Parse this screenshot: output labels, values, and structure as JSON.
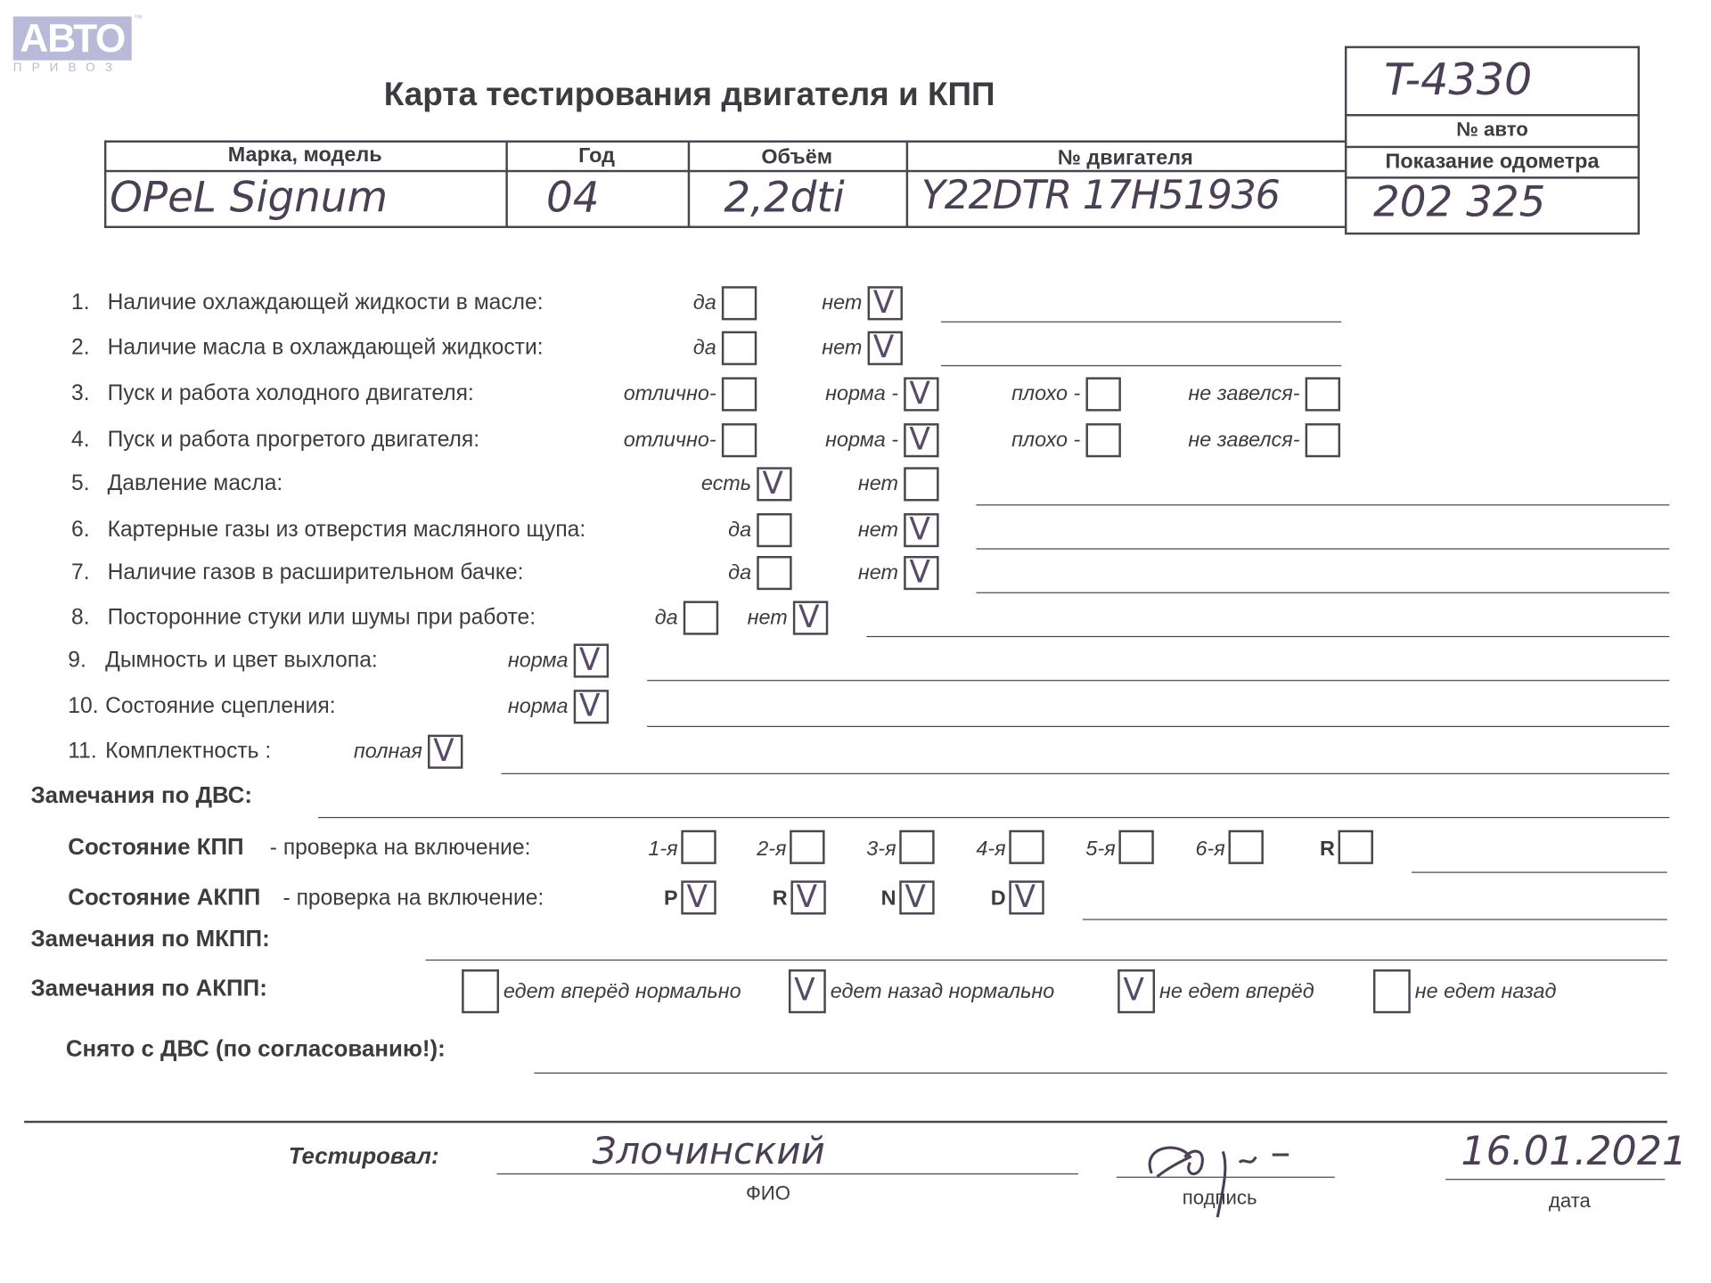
{
  "logo": {
    "text": "АВТО",
    "subtext": "ПРИВОЗ",
    "tm": "™"
  },
  "title": "Карта тестирования двигателя  и КПП",
  "car_box": {
    "number": "T-4330",
    "number_label": "№ авто",
    "odometer_label": "Показание одометра",
    "odometer_value": "202 325"
  },
  "table": {
    "headers": [
      "Марка, модель",
      "Год",
      "Объём",
      "№ двигателя"
    ],
    "values": [
      "OPeL Signum",
      "04",
      "2,2dti",
      "Y22DTR 17H51936"
    ]
  },
  "checklist": [
    {
      "num": "1.",
      "label": "Наличие охлаждающей жидкости в масле:",
      "options": [
        {
          "label": "да",
          "checked": false
        },
        {
          "label": "нет",
          "checked": true
        }
      ]
    },
    {
      "num": "2.",
      "label": "Наличие масла в охлаждающей жидкости:",
      "options": [
        {
          "label": "да",
          "checked": false
        },
        {
          "label": "нет",
          "checked": true
        }
      ]
    },
    {
      "num": "3.",
      "label": "Пуск и работа холодного двигателя:",
      "options": [
        {
          "label": "отлично-",
          "checked": false
        },
        {
          "label": "норма -",
          "checked": true
        },
        {
          "label": "плохо -",
          "checked": false
        },
        {
          "label": "не завелся-",
          "checked": false
        }
      ]
    },
    {
      "num": "4.",
      "label": "Пуск и работа прогретого двигателя:",
      "options": [
        {
          "label": "отлично-",
          "checked": false
        },
        {
          "label": "норма -",
          "checked": true
        },
        {
          "label": "плохо -",
          "checked": false
        },
        {
          "label": "не завелся-",
          "checked": false
        }
      ]
    },
    {
      "num": "5.",
      "label": "Давление масла:",
      "options": [
        {
          "label": "есть",
          "checked": true
        },
        {
          "label": "нет",
          "checked": false
        }
      ]
    },
    {
      "num": "6.",
      "label": "Картерные газы из отверстия масляного щупа:",
      "options": [
        {
          "label": "да",
          "checked": false
        },
        {
          "label": "нет",
          "checked": true
        }
      ]
    },
    {
      "num": "7.",
      "label": "Наличие газов в расширительном бачке:",
      "options": [
        {
          "label": "да",
          "checked": false
        },
        {
          "label": "нет",
          "checked": true
        }
      ]
    },
    {
      "num": "8.",
      "label": "Посторонние стуки или шумы при работе:",
      "options": [
        {
          "label": "да",
          "checked": false
        },
        {
          "label": "нет",
          "checked": true
        }
      ]
    },
    {
      "num": "9.",
      "label": "Дымность и цвет выхлопа:",
      "options": [
        {
          "label": "норма",
          "checked": true
        }
      ]
    },
    {
      "num": "10.",
      "label": "Состояние сцепления:",
      "options": [
        {
          "label": "норма",
          "checked": true
        }
      ]
    },
    {
      "num": "11.",
      "label": "Комплектность :",
      "options": [
        {
          "label": "полная",
          "checked": true
        }
      ]
    }
  ],
  "check_mark": "V",
  "dvs_remarks": {
    "label": "Замечания по ДВС:",
    "value": ""
  },
  "kpp": {
    "label_bold": "Состояние КПП",
    "label_rest": " - проверка на включение:",
    "options": [
      {
        "label": "1-я",
        "checked": false
      },
      {
        "label": "2-я",
        "checked": false
      },
      {
        "label": "3-я",
        "checked": false
      },
      {
        "label": "4-я",
        "checked": false
      },
      {
        "label": "5-я",
        "checked": false
      },
      {
        "label": "6-я",
        "checked": false
      },
      {
        "label": "R",
        "checked": false
      }
    ]
  },
  "akpp": {
    "label_bold": "Состояние АКПП",
    "label_rest": " - проверка на включение:",
    "options": [
      {
        "label": "P",
        "checked": true
      },
      {
        "label": "R",
        "checked": true
      },
      {
        "label": "N",
        "checked": true
      },
      {
        "label": "D",
        "checked": true
      }
    ]
  },
  "mkpp_remarks": {
    "label": "Замечания по МКПП:",
    "value": ""
  },
  "akpp_remarks": {
    "label": "Замечания по АКПП:",
    "options": [
      {
        "label": "едет вперёд нормально",
        "checked": false
      },
      {
        "label": "едет назад нормально",
        "checked": true
      },
      {
        "label": "не едет вперёд",
        "checked": true
      },
      {
        "label": "не едет назад",
        "checked": false
      }
    ]
  },
  "removed": {
    "label": "Снято с ДВС (по согласованию!):",
    "value": ""
  },
  "footer": {
    "tested_label": "Тестировал:",
    "name": "Злочинский",
    "name_caption": "ФИО",
    "signature_caption": "подпись",
    "date": "16.01.2021",
    "date_caption": "дата"
  }
}
